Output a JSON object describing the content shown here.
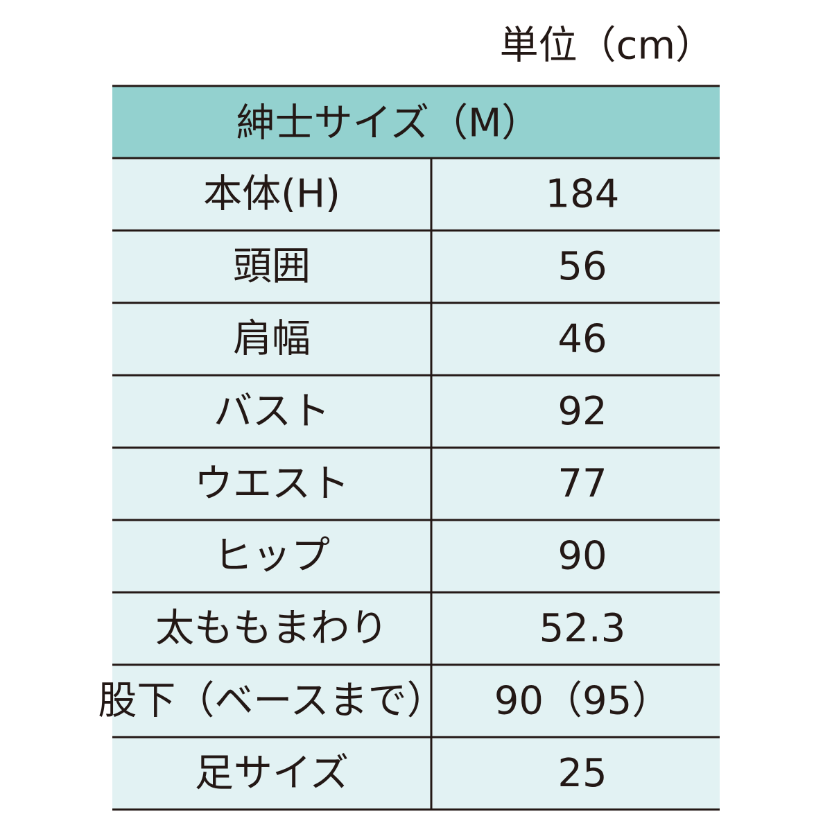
{
  "unit": "単位（cm）",
  "table": {
    "header": "紳士サイズ（M）",
    "rows": [
      [
        "本体(H)",
        "184"
      ],
      [
        "頭囲",
        "56"
      ],
      [
        "肩幅",
        "46"
      ],
      [
        "バスト",
        "92"
      ],
      [
        "ウエスト",
        "77"
      ],
      [
        "ヒップ",
        "90"
      ],
      [
        "太ももまわり",
        "52.3"
      ],
      [
        "股下（ベースまで）",
        "90（95）"
      ],
      [
        "足サイズ",
        "25"
      ]
    ]
  }
}
